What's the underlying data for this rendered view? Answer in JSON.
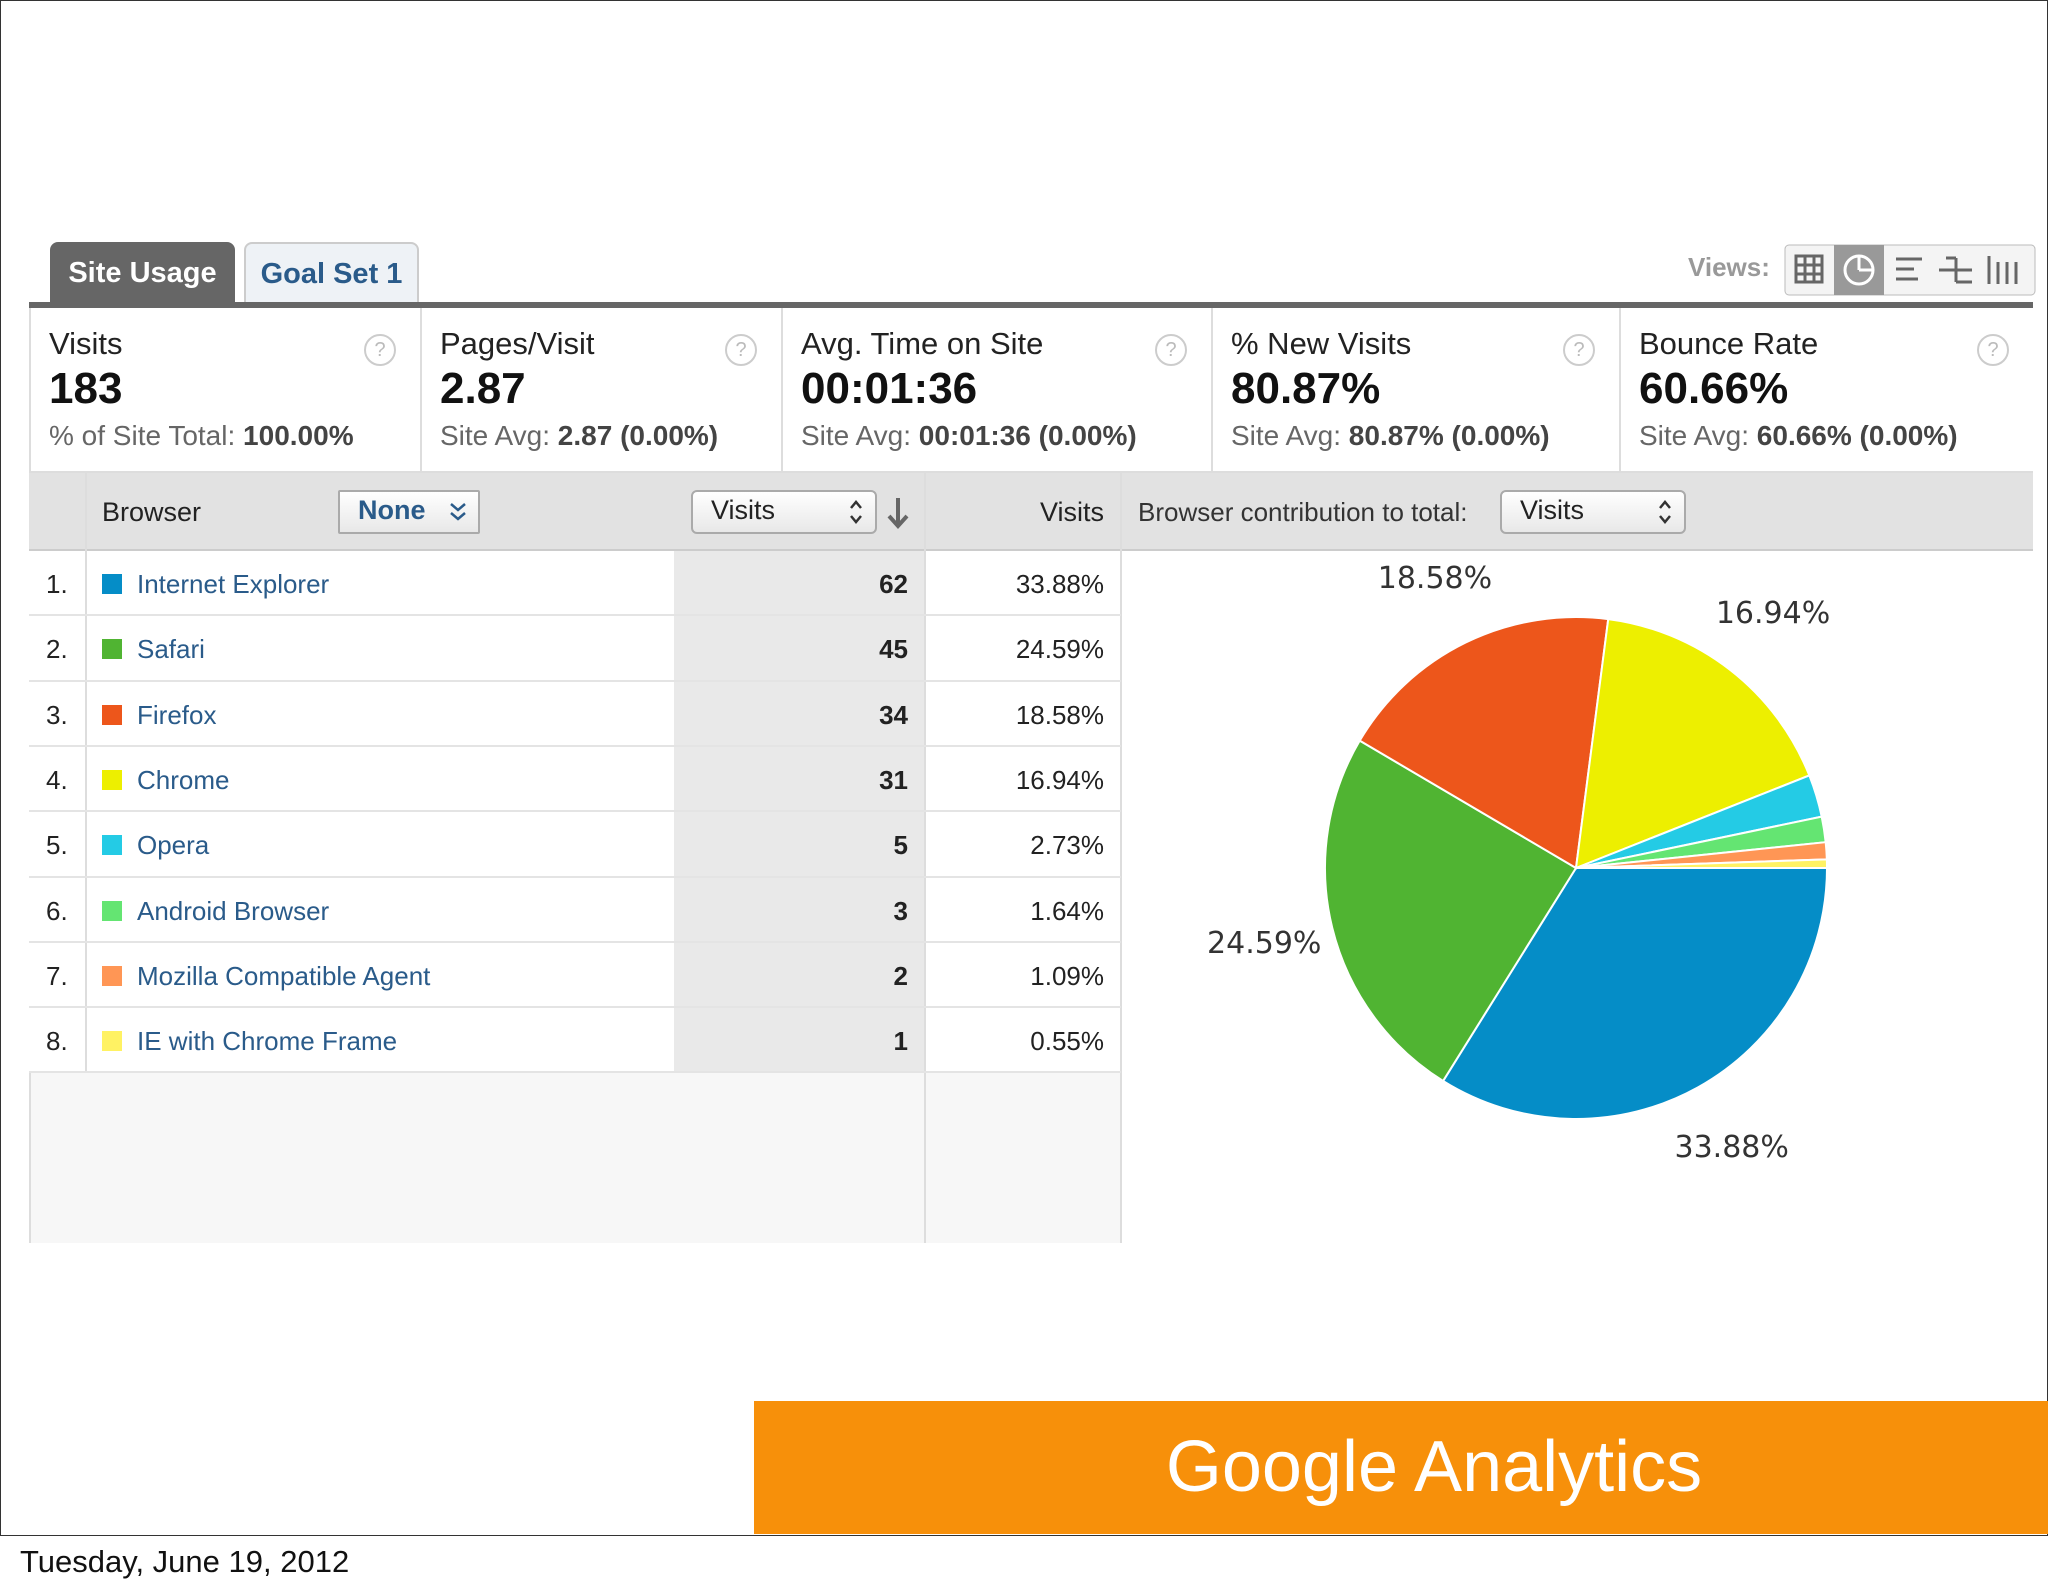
{
  "tabs": [
    "Site Usage",
    "Goal Set 1"
  ],
  "views_label": "Views:",
  "help": "?",
  "metrics": [
    {
      "label": "Visits",
      "value": "183",
      "sub_label": "% of Site Total:",
      "sub_value": "100.00%"
    },
    {
      "label": "Pages/Visit",
      "value": "2.87",
      "sub_label": "Site Avg:",
      "sub_value": "2.87 (0.00%)"
    },
    {
      "label": "Avg. Time on Site",
      "value": "00:01:36",
      "sub_label": "Site Avg:",
      "sub_value": "00:01:36 (0.00%)"
    },
    {
      "label": "% New Visits",
      "value": "80.87%",
      "sub_label": "Site Avg:",
      "sub_value": "80.87% (0.00%)"
    },
    {
      "label": "Bounce Rate",
      "value": "60.66%",
      "sub_label": "Site Avg:",
      "sub_value": "60.66% (0.00%)"
    }
  ],
  "table": {
    "header": {
      "dimension": "Browser",
      "secondary": "None",
      "sort_select": "Visits",
      "column": "Visits",
      "contribution_label": "Browser contribution to total:",
      "contribution_select": "Visits"
    },
    "rows": [
      {
        "rank": "1.",
        "name": "Internet Explorer",
        "color": "#058dc7",
        "visits": 62,
        "percent": "33.88%"
      },
      {
        "rank": "2.",
        "name": "Safari",
        "color": "#50b432",
        "visits": 45,
        "percent": "24.59%"
      },
      {
        "rank": "3.",
        "name": "Firefox",
        "color": "#ed561b",
        "visits": 34,
        "percent": "18.58%"
      },
      {
        "rank": "4.",
        "name": "Chrome",
        "color": "#edef00",
        "visits": 31,
        "percent": "16.94%"
      },
      {
        "rank": "5.",
        "name": "Opera",
        "color": "#24cbe5",
        "visits": 5,
        "percent": "2.73%"
      },
      {
        "rank": "6.",
        "name": "Android Browser",
        "color": "#64e572",
        "visits": 3,
        "percent": "1.64%"
      },
      {
        "rank": "7.",
        "name": "Mozilla Compatible Agent",
        "color": "#ff9655",
        "visits": 2,
        "percent": "1.09%"
      },
      {
        "rank": "8.",
        "name": "IE with Chrome Frame",
        "color": "#fff263",
        "visits": 1,
        "percent": "0.55%"
      }
    ]
  },
  "pie": {
    "labeled_slices": 4
  },
  "footer": {
    "title": "Google Analytics",
    "date": "Tuesday, June 19, 2012"
  }
}
